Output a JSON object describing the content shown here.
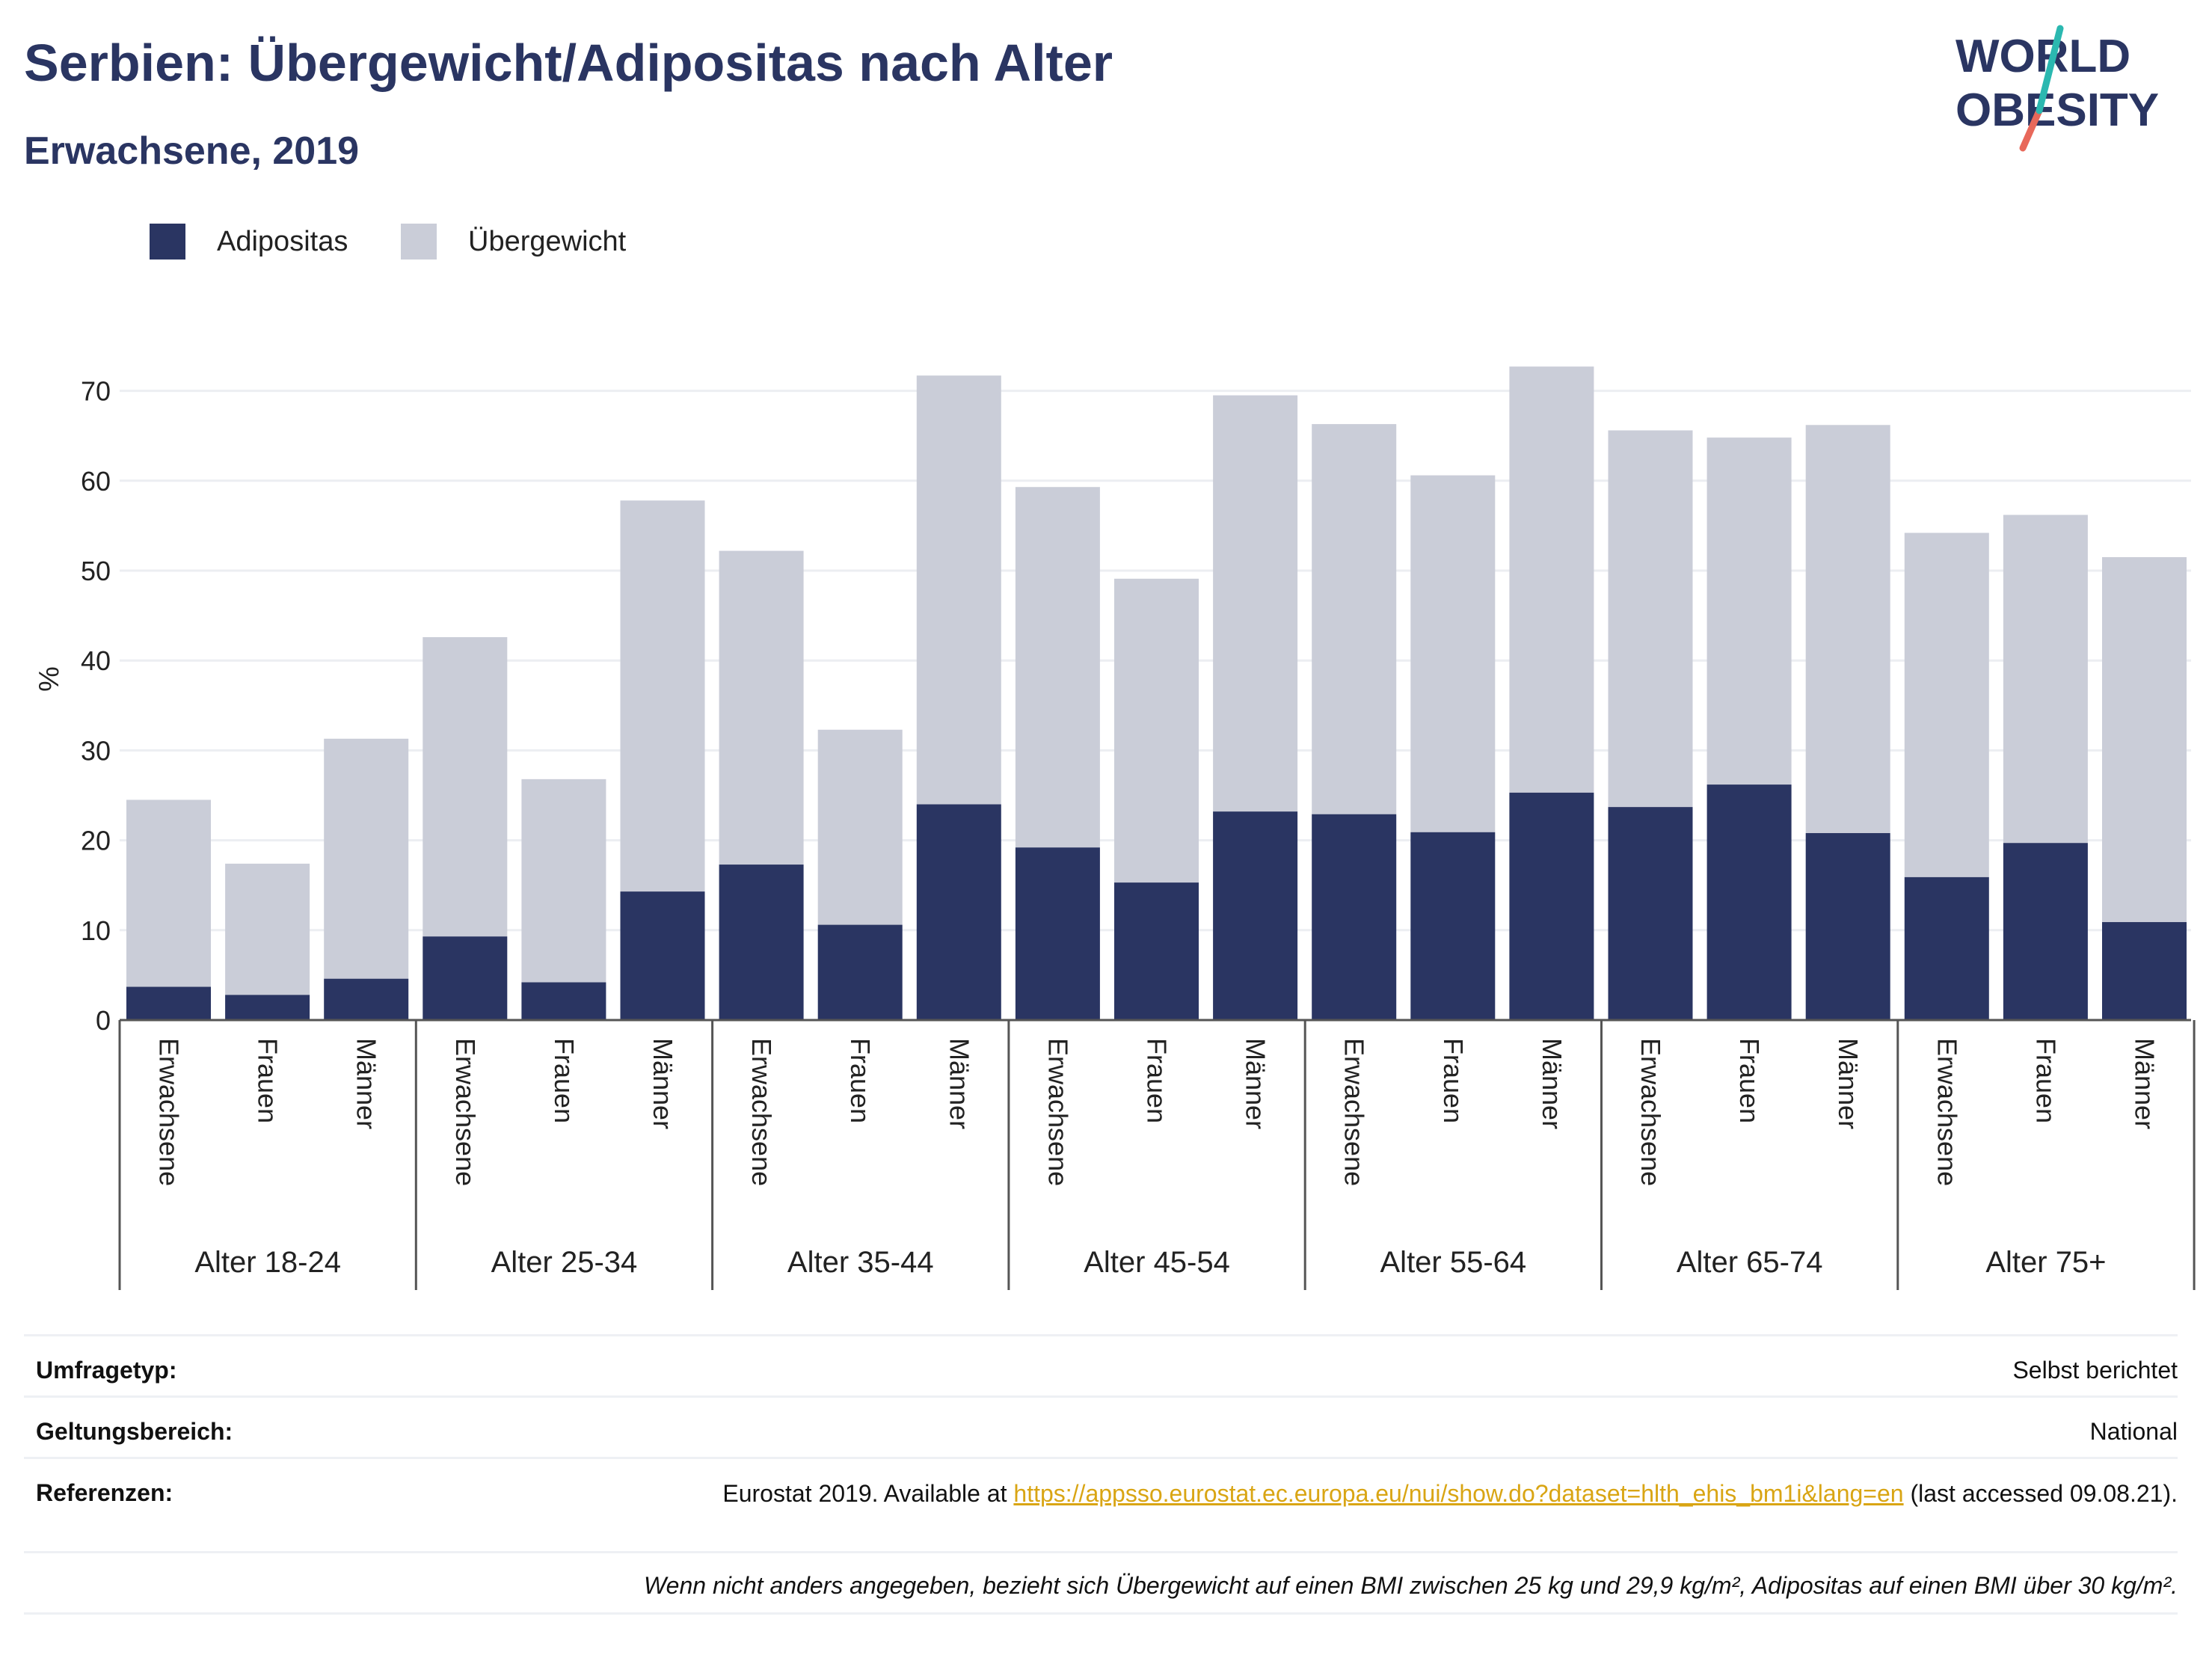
{
  "header": {
    "title": "Serbien: Übergewicht/Adipositas nach Alter",
    "subtitle": "Erwachsene, 2019"
  },
  "logo": {
    "line1": "WORLD",
    "line2": "OBESITY",
    "colors": {
      "text": "#2a3562",
      "slash_top": "#2bb8b0",
      "slash_bottom": "#e8685a"
    }
  },
  "legend": [
    {
      "label": "Adipositas",
      "color": "#2a3562"
    },
    {
      "label": "Übergewicht",
      "color": "#cacdd8"
    }
  ],
  "chart_data": {
    "type": "bar",
    "stacked": true,
    "ylabel": "%",
    "ylim": [
      0,
      75
    ],
    "yticks": [
      0,
      10,
      20,
      30,
      40,
      50,
      60,
      70
    ],
    "grid": true,
    "legend_position": "top-left",
    "groups": [
      "Alter 18-24",
      "Alter 25-34",
      "Alter 35-44",
      "Alter 45-54",
      "Alter 55-64",
      "Alter 65-74",
      "Alter 75+"
    ],
    "subcategories": [
      "Erwachsene",
      "Frauen",
      "Männer"
    ],
    "series": [
      {
        "name": "Adipositas",
        "color": "#2a3562",
        "values": [
          3.7,
          2.8,
          4.6,
          9.3,
          4.2,
          14.3,
          17.3,
          10.6,
          24.0,
          19.2,
          15.3,
          23.2,
          22.9,
          20.9,
          25.3,
          23.7,
          26.2,
          20.8,
          15.9,
          19.7,
          10.9
        ]
      },
      {
        "name": "Übergewicht",
        "color": "#cacdd8",
        "values": [
          20.8,
          14.6,
          26.7,
          33.3,
          22.6,
          43.5,
          34.9,
          21.7,
          47.7,
          40.1,
          33.8,
          46.3,
          43.4,
          39.7,
          47.4,
          41.9,
          38.6,
          45.4,
          38.3,
          36.5,
          40.6
        ]
      }
    ],
    "totals": [
      24.5,
      17.4,
      31.3,
      42.6,
      26.8,
      57.8,
      52.2,
      32.3,
      71.7,
      59.3,
      49.1,
      69.5,
      66.3,
      60.6,
      72.7,
      65.6,
      64.8,
      66.2,
      54.2,
      56.2,
      51.5
    ],
    "colors": {
      "obesity": "#2a3562",
      "overweight": "#cacdd8",
      "grid": "#eceef2",
      "axis": "#555555"
    }
  },
  "info": {
    "survey_label": "Umfragetyp:",
    "survey_value": "Selbst berichtet",
    "scope_label": "Geltungsbereich:",
    "scope_value": "National",
    "refs_label": "Referenzen:",
    "refs_prefix": "Eurostat 2019. Available at",
    "refs_link": "https://appsso.eurostat.ec.europa.eu/nui/show.do?dataset=hlth_ehis_bm1i&lang=en",
    "refs_suffix": "(last accessed 09.08.21).",
    "note": "Wenn nicht anders angegeben, bezieht sich Übergewicht auf einen BMI zwischen 25 kg und 29,9 kg/m², Adipositas auf einen BMI über 30 kg/m²."
  }
}
